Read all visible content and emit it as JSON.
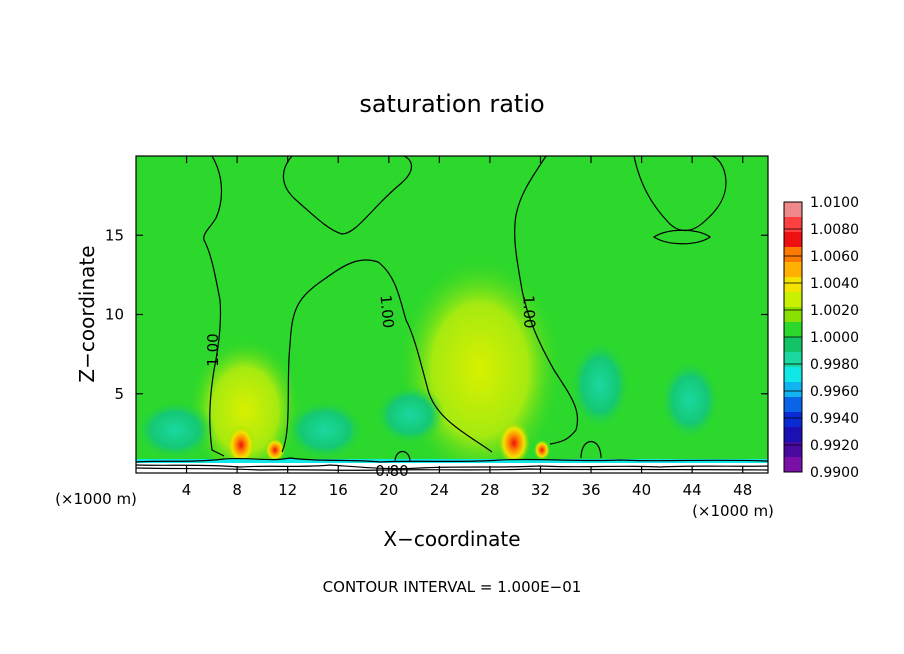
{
  "chart_data": {
    "type": "heatmap",
    "title": "saturation ratio",
    "xlabel": "X−coordinate",
    "ylabel": "Z−coordinate",
    "x_unit_left": "(×1000 m)",
    "x_unit_right": "(×1000 m)",
    "xlim": [
      0,
      50
    ],
    "ylim": [
      0,
      20
    ],
    "xticks": [
      4,
      8,
      12,
      16,
      20,
      24,
      28,
      32,
      36,
      40,
      44,
      48
    ],
    "yticks": [
      5,
      10,
      15
    ],
    "colorbar": {
      "labels": [
        "1.0100",
        "1.0080",
        "1.0060",
        "1.0040",
        "1.0020",
        "1.0000",
        "0.9980",
        "0.9960",
        "0.9940",
        "0.9920",
        "0.9900"
      ],
      "colors": [
        "#f08a8a",
        "#ff4040",
        "#ee1010",
        "#ff7a00",
        "#ffb000",
        "#f2e400",
        "#c8f000",
        "#8ae000",
        "#2cd82c",
        "#12c466",
        "#1ad8a0",
        "#10e8e8",
        "#10b4f0",
        "#0a64e8",
        "#0a2ad4",
        "#1a10b4",
        "#4a0aa0",
        "#7a10a8"
      ]
    },
    "contour_labels": [
      {
        "text": "1.00",
        "x": 7.0,
        "z": 8.5,
        "angle": -90
      },
      {
        "text": "1.00",
        "x": 19.0,
        "z": 10.5,
        "angle": 85
      },
      {
        "text": "1.00",
        "x": 31.0,
        "z": 10.5,
        "angle": 88
      },
      {
        "text": "0.80",
        "x": 20.5,
        "z": 0.2,
        "angle": 0
      }
    ],
    "contour_interval_text": "CONTOUR INTERVAL = 1.000E−01"
  }
}
